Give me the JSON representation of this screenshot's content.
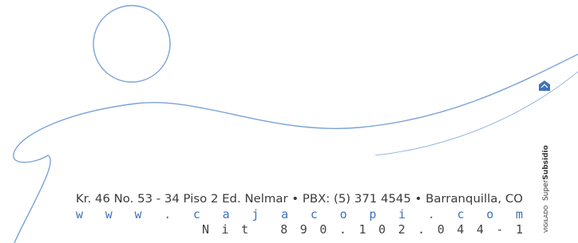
{
  "address": "Kr. 46 No. 53 - 34 Piso 2 Ed. Nelmar • PBX: (5) 371 4545 • Barranquilla, CO",
  "website": "www.cajacopi.com",
  "nit": "Nit 890.102.044-1",
  "seal": {
    "prefix": "VIGILADO",
    "brand_light": "Super",
    "brand_bold": "Subsidio"
  }
}
